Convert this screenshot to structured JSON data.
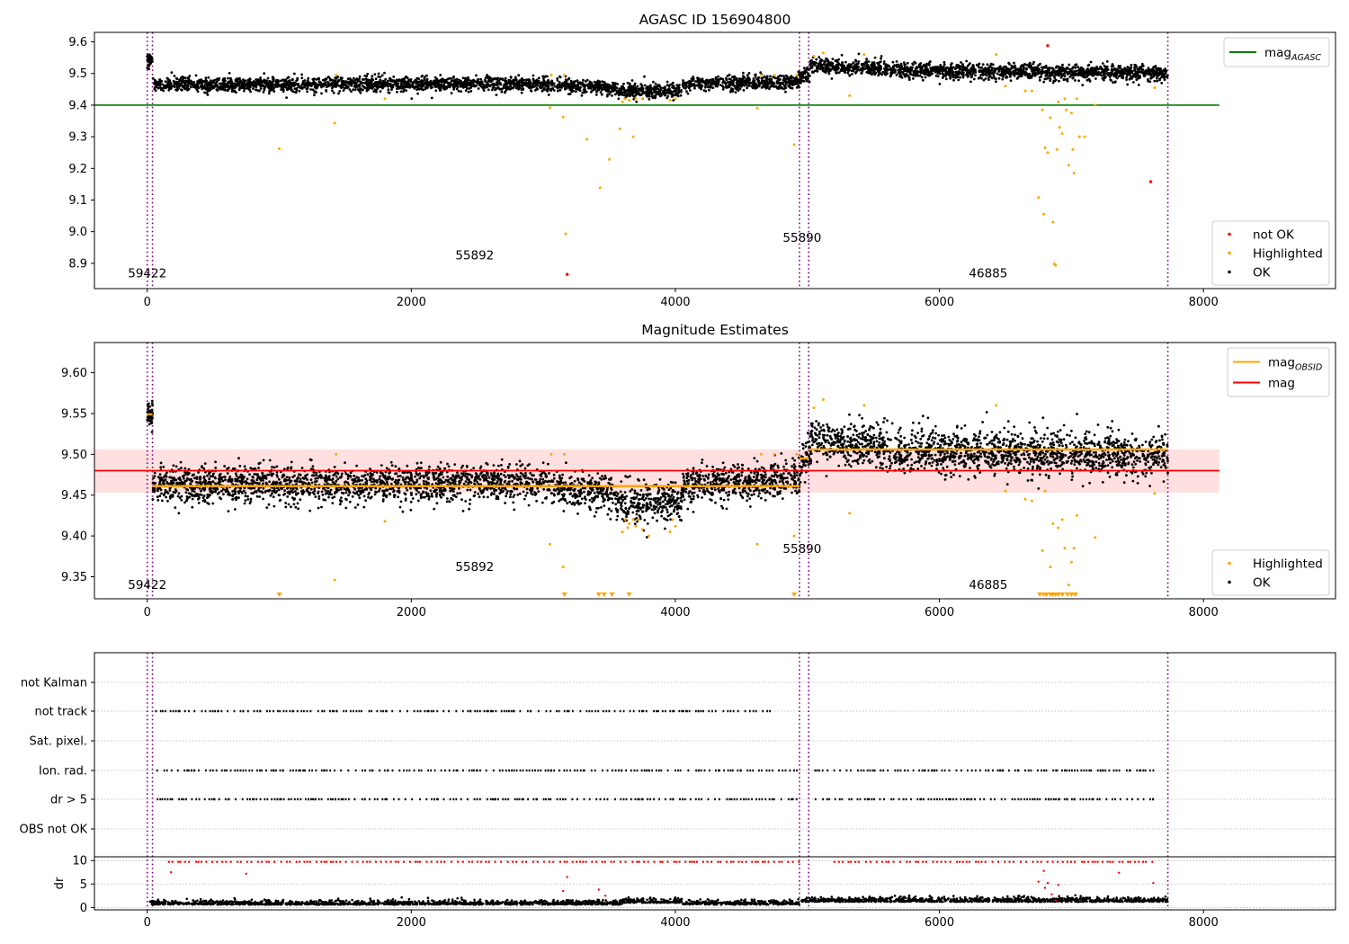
{
  "chart_data": [
    {
      "type": "scatter",
      "title": "AGASC ID 156904800",
      "xlim": [
        -400,
        9000
      ],
      "ylim": [
        8.82,
        9.63
      ],
      "xticks": [
        0,
        2000,
        4000,
        6000,
        8000
      ],
      "yticks": [
        8.9,
        9.0,
        9.1,
        9.2,
        9.3,
        9.4,
        9.5,
        9.6
      ],
      "ytick_labels": [
        "8.9",
        "9.0",
        "9.1",
        "9.2",
        "9.3",
        "9.4",
        "9.5",
        "9.6"
      ],
      "hline": {
        "y": 9.4,
        "x_range": [
          -400,
          8120
        ],
        "color": "#008000"
      },
      "legend_top": {
        "position": "top-right",
        "entries": [
          {
            "label": "mag",
            "subscript": "AGASC",
            "color": "#008000",
            "kind": "line"
          }
        ]
      },
      "legend_bottom": {
        "position": "bottom-right",
        "entries": [
          {
            "label": "not OK",
            "color": "#ff0000",
            "kind": "dot"
          },
          {
            "label": "Highlighted",
            "color": "#ffa500",
            "kind": "dot"
          },
          {
            "label": "OK",
            "color": "#000000",
            "kind": "dot"
          }
        ]
      },
      "obs_labels": [
        {
          "text": "59422",
          "x": 0,
          "y": 8.855
        },
        {
          "text": "55892",
          "x": 2480,
          "y": 8.912
        },
        {
          "text": "55890",
          "x": 4960,
          "y": 8.968
        },
        {
          "text": "46885",
          "x": 6370,
          "y": 8.855
        }
      ],
      "ok_segments": [
        {
          "x0": 0,
          "x1": 40,
          "y0": 9.545,
          "y1": 9.545,
          "noise": 0.01,
          "n": 50
        },
        {
          "x0": 40,
          "x1": 3000,
          "y0": 9.465,
          "y1": 9.468,
          "noise": 0.011,
          "n": 1700
        },
        {
          "x0": 3000,
          "x1": 3550,
          "y0": 9.465,
          "y1": 9.455,
          "noise": 0.011,
          "n": 300
        },
        {
          "x0": 3550,
          "x1": 4050,
          "y0": 9.445,
          "y1": 9.445,
          "noise": 0.012,
          "n": 300
        },
        {
          "x0": 4050,
          "x1": 4950,
          "y0": 9.465,
          "y1": 9.475,
          "noise": 0.011,
          "n": 520
        },
        {
          "x0": 4950,
          "x1": 5020,
          "y0": 9.49,
          "y1": 9.5,
          "noise": 0.012,
          "n": 40
        },
        {
          "x0": 5020,
          "x1": 5600,
          "y0": 9.525,
          "y1": 9.515,
          "noise": 0.012,
          "n": 360
        },
        {
          "x0": 5600,
          "x1": 7730,
          "y0": 9.51,
          "y1": 9.5,
          "noise": 0.012,
          "n": 1300
        }
      ],
      "highlighted": [
        [
          1000,
          9.262
        ],
        [
          1420,
          9.343
        ],
        [
          1430,
          9.495
        ],
        [
          1800,
          9.42
        ],
        [
          3050,
          9.392
        ],
        [
          3060,
          9.495
        ],
        [
          3150,
          9.362
        ],
        [
          3160,
          9.495
        ],
        [
          3170,
          8.993
        ],
        [
          3330,
          9.292
        ],
        [
          3430,
          9.139
        ],
        [
          3500,
          9.228
        ],
        [
          3580,
          9.325
        ],
        [
          3600,
          9.41
        ],
        [
          3620,
          9.42
        ],
        [
          3650,
          9.415
        ],
        [
          3680,
          9.3
        ],
        [
          3700,
          9.42
        ],
        [
          3750,
          9.42
        ],
        [
          3960,
          9.415
        ],
        [
          4000,
          9.42
        ],
        [
          4620,
          9.39
        ],
        [
          4650,
          9.495
        ],
        [
          4750,
          9.495
        ],
        [
          4900,
          9.275
        ],
        [
          4920,
          9.495
        ],
        [
          5120,
          9.565
        ],
        [
          5050,
          9.555
        ],
        [
          5320,
          9.43
        ],
        [
          5430,
          9.56
        ],
        [
          6430,
          9.56
        ],
        [
          6500,
          9.46
        ],
        [
          6650,
          9.445
        ],
        [
          6700,
          9.445
        ],
        [
          6750,
          9.108
        ],
        [
          6780,
          9.385
        ],
        [
          6790,
          9.055
        ],
        [
          6800,
          9.265
        ],
        [
          6820,
          9.25
        ],
        [
          6840,
          9.36
        ],
        [
          6860,
          9.03
        ],
        [
          6870,
          8.898
        ],
        [
          6880,
          8.893
        ],
        [
          6890,
          9.26
        ],
        [
          6900,
          9.41
        ],
        [
          6910,
          9.33
        ],
        [
          6930,
          9.31
        ],
        [
          6950,
          9.42
        ],
        [
          6960,
          9.385
        ],
        [
          6980,
          9.21
        ],
        [
          7000,
          9.375
        ],
        [
          7010,
          9.26
        ],
        [
          7020,
          9.185
        ],
        [
          7040,
          9.42
        ],
        [
          7060,
          9.3
        ],
        [
          7100,
          9.3
        ],
        [
          7180,
          9.4
        ],
        [
          7630,
          9.455
        ]
      ],
      "not_ok": [
        [
          3180,
          8.865
        ],
        [
          6820,
          9.588
        ],
        [
          7600,
          9.158
        ]
      ],
      "vlines": [
        {
          "x": 0,
          "color": "#800080"
        },
        {
          "x": 40,
          "color": "#800080"
        },
        {
          "x": 4940,
          "color": "#800080"
        },
        {
          "x": 5010,
          "color": "#800080"
        },
        {
          "x": 7730,
          "color": "#800080"
        }
      ]
    },
    {
      "type": "scatter",
      "title": "Magnitude Estimates",
      "xlim": [
        -400,
        9000
      ],
      "ylim": [
        9.323,
        9.637
      ],
      "xticks": [
        0,
        2000,
        4000,
        6000,
        8000
      ],
      "yticks": [
        9.35,
        9.4,
        9.45,
        9.5,
        9.55,
        9.6
      ],
      "ytick_labels": [
        "9.35",
        "9.40",
        "9.45",
        "9.50",
        "9.55",
        "9.60"
      ],
      "band": {
        "y0": 9.453,
        "y1": 9.506,
        "x_range": [
          -400,
          8120
        ],
        "color": "#ff0000",
        "alpha": 0.12
      },
      "hline": {
        "y": 9.48,
        "x_range": [
          -400,
          8120
        ],
        "color": "#ff0000"
      },
      "obsid_mags": [
        {
          "x0": 0,
          "x1": 40,
          "y": 9.549
        },
        {
          "x0": 40,
          "x1": 4940,
          "y": 9.461
        },
        {
          "x0": 4940,
          "x1": 5010,
          "y": 9.495
        },
        {
          "x0": 5010,
          "x1": 7730,
          "y": 9.506
        }
      ],
      "legend_top": {
        "position": "top-right",
        "entries": [
          {
            "label": "mag",
            "subscript": "OBSID",
            "color": "#ffa500",
            "kind": "line"
          },
          {
            "label": "mag",
            "subscript": "",
            "color": "#ff0000",
            "kind": "line"
          }
        ]
      },
      "legend_bottom": {
        "position": "bottom-right",
        "entries": [
          {
            "label": "Highlighted",
            "color": "#ffa500",
            "kind": "dot"
          },
          {
            "label": "OK",
            "color": "#000000",
            "kind": "dot"
          }
        ]
      },
      "obs_labels": [
        {
          "text": "59422",
          "x": 0,
          "y": 9.335
        },
        {
          "text": "55892",
          "x": 2480,
          "y": 9.357
        },
        {
          "text": "55890",
          "x": 4960,
          "y": 9.379
        },
        {
          "text": "46885",
          "x": 6370,
          "y": 9.335
        }
      ],
      "ok_segments": [
        {
          "x0": 0,
          "x1": 40,
          "y0": 9.55,
          "y1": 9.55,
          "noise": 0.007,
          "n": 50
        },
        {
          "x0": 40,
          "x1": 3000,
          "y0": 9.462,
          "y1": 9.465,
          "noise": 0.011,
          "n": 1700
        },
        {
          "x0": 3000,
          "x1": 3550,
          "y0": 9.462,
          "y1": 9.452,
          "noise": 0.011,
          "n": 300
        },
        {
          "x0": 3550,
          "x1": 4050,
          "y0": 9.44,
          "y1": 9.442,
          "noise": 0.012,
          "n": 300
        },
        {
          "x0": 4050,
          "x1": 4950,
          "y0": 9.462,
          "y1": 9.47,
          "noise": 0.011,
          "n": 520
        },
        {
          "x0": 4950,
          "x1": 5020,
          "y0": 9.49,
          "y1": 9.5,
          "noise": 0.012,
          "n": 40
        },
        {
          "x0": 5020,
          "x1": 5600,
          "y0": 9.518,
          "y1": 9.508,
          "noise": 0.013,
          "n": 360
        },
        {
          "x0": 5600,
          "x1": 7730,
          "y0": 9.505,
          "y1": 9.498,
          "noise": 0.013,
          "n": 1300
        }
      ],
      "highlighted": [
        [
          1420,
          9.346
        ],
        [
          1430,
          9.5
        ],
        [
          1800,
          9.418
        ],
        [
          3050,
          9.39
        ],
        [
          3060,
          9.5
        ],
        [
          3150,
          9.362
        ],
        [
          3160,
          9.5
        ],
        [
          3600,
          9.405
        ],
        [
          3620,
          9.42
        ],
        [
          3640,
          9.41
        ],
        [
          3650,
          9.415
        ],
        [
          3680,
          9.42
        ],
        [
          3700,
          9.412
        ],
        [
          3720,
          9.42
        ],
        [
          3750,
          9.408
        ],
        [
          3800,
          9.4
        ],
        [
          3960,
          9.405
        ],
        [
          3980,
          9.42
        ],
        [
          4000,
          9.412
        ],
        [
          4620,
          9.39
        ],
        [
          4650,
          9.5
        ],
        [
          4750,
          9.5
        ],
        [
          4900,
          9.4
        ],
        [
          4920,
          9.5
        ],
        [
          5050,
          9.557
        ],
        [
          5120,
          9.567
        ],
        [
          5320,
          9.428
        ],
        [
          5430,
          9.56
        ],
        [
          6430,
          9.56
        ],
        [
          6500,
          9.455
        ],
        [
          6650,
          9.445
        ],
        [
          6700,
          9.443
        ],
        [
          6780,
          9.382
        ],
        [
          6800,
          9.455
        ],
        [
          6840,
          9.362
        ],
        [
          6860,
          9.415
        ],
        [
          6900,
          9.41
        ],
        [
          6930,
          9.42
        ],
        [
          6950,
          9.385
        ],
        [
          6980,
          9.34
        ],
        [
          7000,
          9.368
        ],
        [
          7020,
          9.385
        ],
        [
          7040,
          9.425
        ],
        [
          7180,
          9.398
        ],
        [
          7630,
          9.452
        ]
      ],
      "highlighted_clipped": [
        1000,
        3160,
        3420,
        3460,
        3520,
        3650,
        4900,
        6760,
        6790,
        6810,
        6840,
        6860,
        6880,
        6900,
        6930,
        6970,
        7000,
        7030
      ],
      "vlines": [
        {
          "x": 0,
          "color": "#800080"
        },
        {
          "x": 40,
          "color": "#800080"
        },
        {
          "x": 4940,
          "color": "#800080"
        },
        {
          "x": 5010,
          "color": "#800080"
        },
        {
          "x": 7730,
          "color": "#800080"
        }
      ]
    },
    {
      "type": "scatter",
      "xlim": [
        -400,
        9000
      ],
      "xticks": [
        0,
        2000,
        4000,
        6000,
        8000
      ],
      "flag_rows": [
        "not Kalman",
        "not track",
        "Sat. pixel.",
        "Ion. rad.",
        "dr > 5",
        "OBS not OK"
      ],
      "flag_ranges": {
        "not track": [
          [
            40,
            4700
          ]
        ],
        "Ion. rad.": [
          [
            40,
            4920
          ],
          [
            4920,
            4960
          ],
          [
            5020,
            7620
          ]
        ],
        "dr > 5": [
          [
            40,
            4920
          ],
          [
            4920,
            4960
          ],
          [
            5020,
            7620
          ]
        ]
      },
      "dr_ylabel": "dr",
      "dr_ylim": [
        -0.5,
        10.8
      ],
      "dr_yticks": [
        0,
        5,
        10
      ],
      "dr_ytick_labels": [
        "0",
        "5",
        "10"
      ],
      "dr_extra_points": [
        [
          3150,
          3.5
        ],
        [
          3180,
          6.5
        ],
        [
          3420,
          3.8
        ],
        [
          3470,
          2.5
        ],
        [
          6750,
          5.5
        ],
        [
          6790,
          7.8
        ],
        [
          6800,
          4.2
        ],
        [
          6820,
          5.2
        ],
        [
          6850,
          2.8
        ],
        [
          6880,
          1.5
        ],
        [
          6900,
          4.8
        ],
        [
          7360,
          7.4
        ],
        [
          7620,
          5.2
        ],
        [
          180,
          7.5
        ],
        [
          750,
          7.2
        ]
      ],
      "vlines": [
        {
          "x": 0,
          "color": "#800080"
        },
        {
          "x": 40,
          "color": "#800080"
        },
        {
          "x": 4940,
          "color": "#800080"
        },
        {
          "x": 5010,
          "color": "#800080"
        },
        {
          "x": 7730,
          "color": "#800080"
        }
      ]
    }
  ]
}
